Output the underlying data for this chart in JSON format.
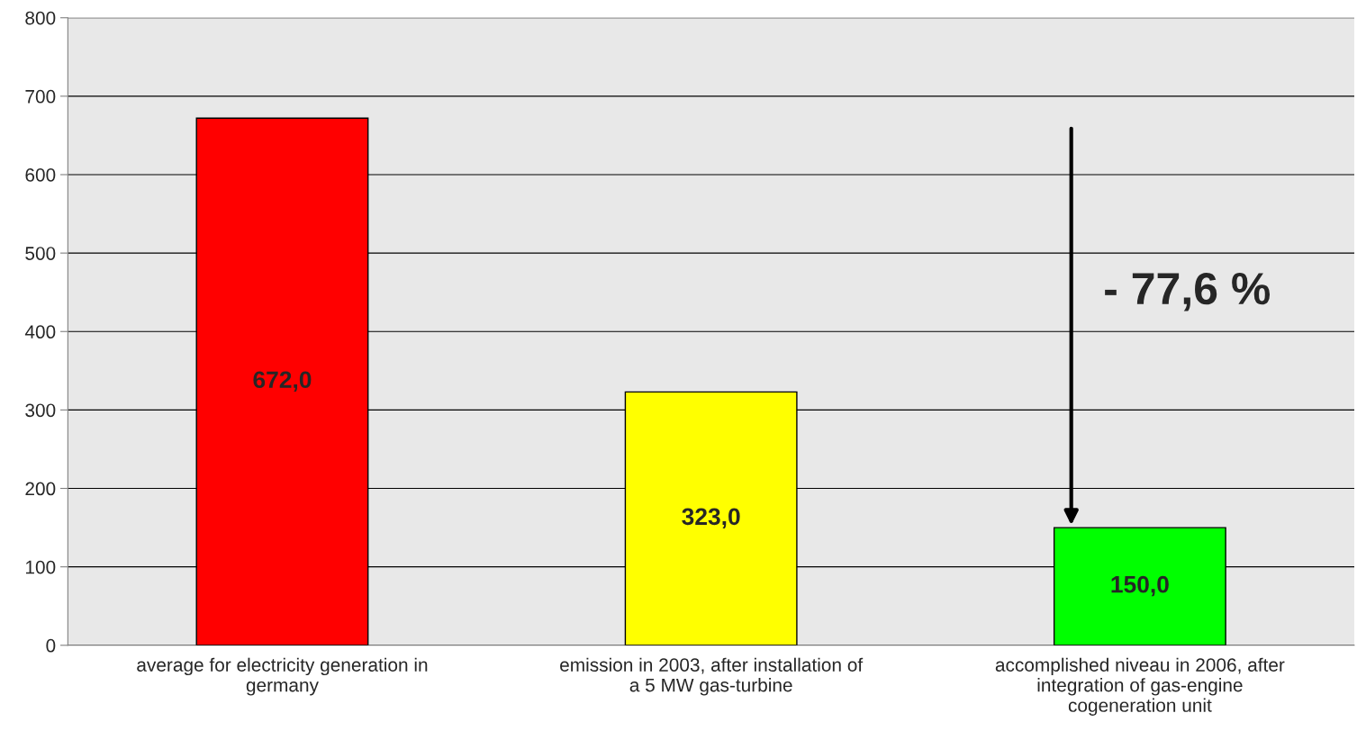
{
  "chart_data": {
    "type": "bar",
    "categories": [
      "average for electricity generation in\ngermany",
      "emission in 2003, after installation of\na 5 MW gas-turbine",
      "accomplished niveau in 2006, after\nintegration of gas-engine\ncogeneration unit"
    ],
    "values": [
      672.0,
      323.0,
      150.0
    ],
    "colors": [
      "#ff0000",
      "#ffff00",
      "#00ff00"
    ],
    "value_labels": [
      "672,0",
      "323,0",
      "150,0"
    ],
    "ylim": [
      0,
      800
    ],
    "yticks": [
      0,
      100,
      200,
      300,
      400,
      500,
      600,
      700,
      800
    ],
    "grid": "y",
    "annotations": [
      "- 77,6 %"
    ]
  }
}
